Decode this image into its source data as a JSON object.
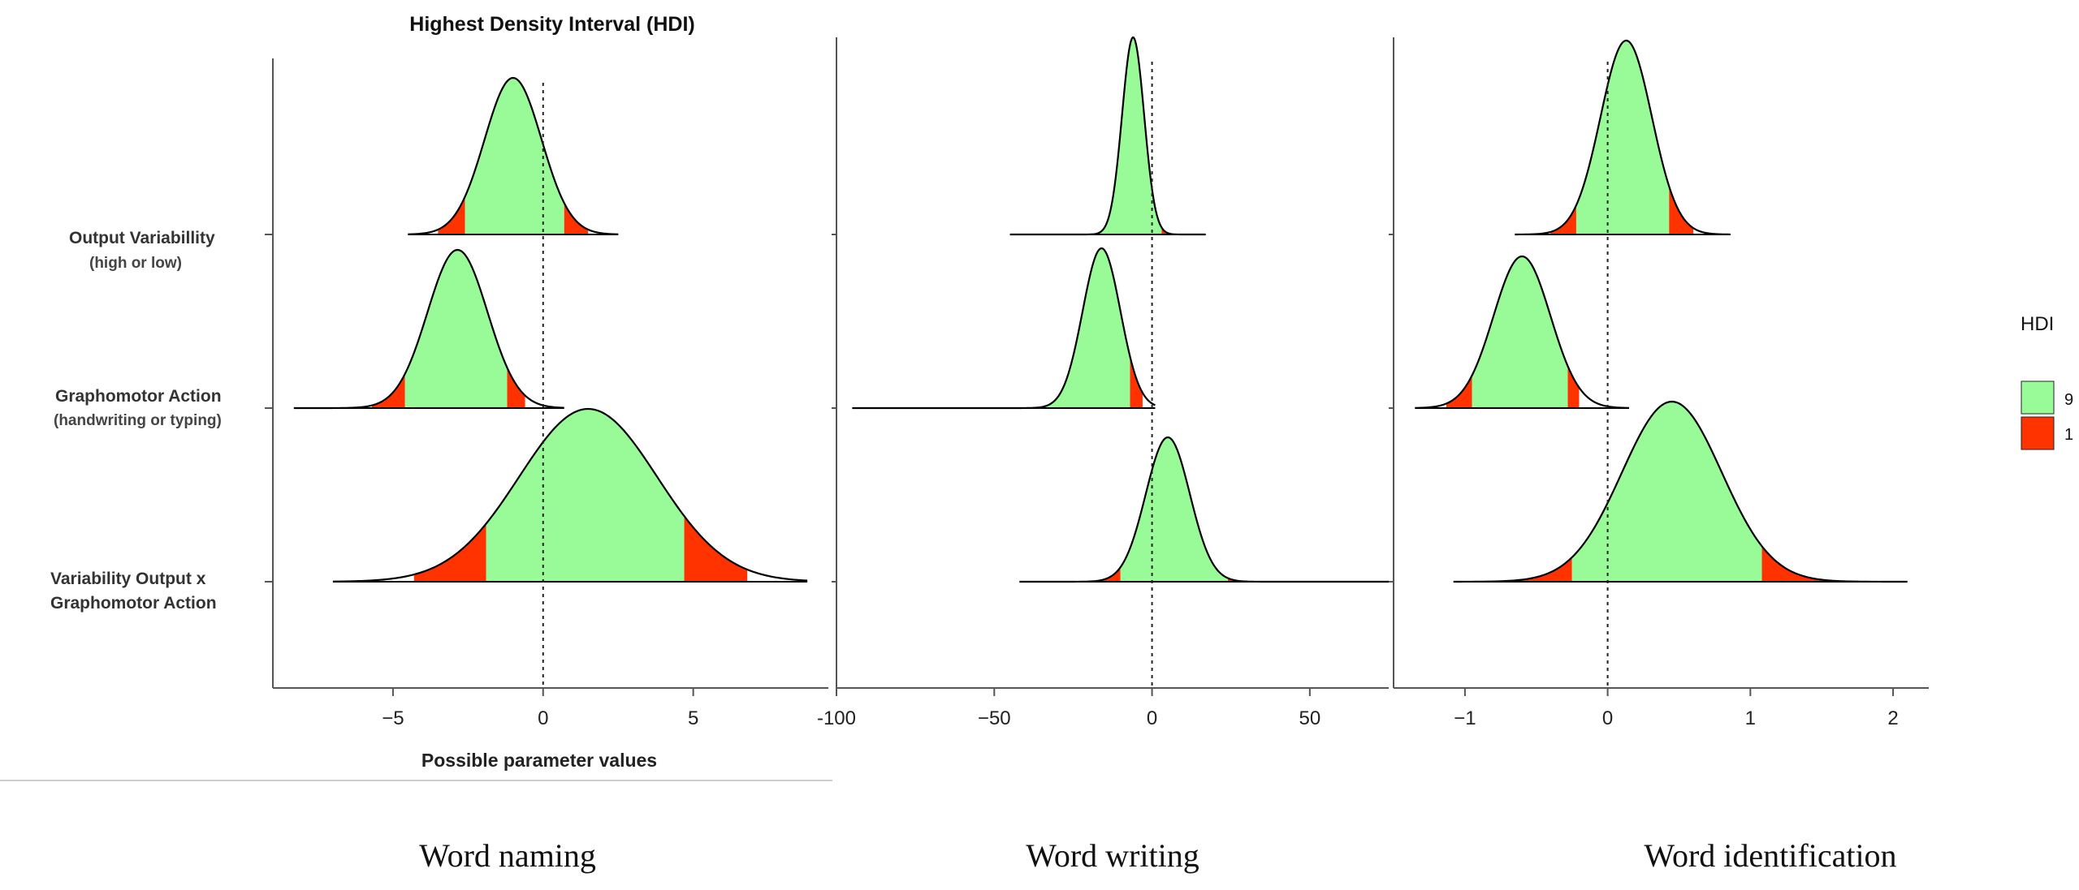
{
  "figure": {
    "title": "Highest Density Interval (HDI)",
    "xlabel": "Possible parameter values",
    "legend": {
      "title": "HDI",
      "entries": [
        {
          "label": "9",
          "color": "#98fb98"
        },
        {
          "label": "1",
          "color": "#ff3300"
        }
      ]
    },
    "colors": {
      "inner": "#98fb98",
      "tail": "#ff3300",
      "outline": "#000000",
      "axis": "#555555"
    }
  },
  "row_labels": [
    {
      "line1": "Output Variabillity",
      "line2": "(high or low)"
    },
    {
      "line1": "Graphomotor Action",
      "line2": "(handwriting or typing)"
    },
    {
      "line1": "Variability Output x",
      "line2": "Graphomotor Action"
    }
  ],
  "panel_titles": [
    "Word naming",
    "Word writing",
    "Word identification"
  ],
  "chart_data": [
    {
      "type": "area",
      "title": "Word naming",
      "xlabel": "Possible parameter values",
      "xlim": [
        -9,
        9.5
      ],
      "xticks": [
        -5,
        0,
        5
      ],
      "xtick_labels": [
        "−5",
        "0",
        "5"
      ],
      "reference_line": 0,
      "series": [
        {
          "name": "Output Variabillity (high or low)",
          "mode": -1.0,
          "sd": 0.95,
          "range": [
            -4.5,
            2.5
          ],
          "hdi_low": -2.6,
          "hdi_high": 0.7,
          "tail_low": -3.5,
          "tail_high": 1.5
        },
        {
          "name": "Graphomotor Action (handwriting or typing)",
          "mode": -2.85,
          "sd": 1.0,
          "range": [
            -8.3,
            0.7
          ],
          "hdi_low": -4.6,
          "hdi_high": -1.2,
          "tail_low": -5.7,
          "tail_high": -0.6
        },
        {
          "name": "Variability Output x Graphomotor Action",
          "mode": 1.5,
          "sd": 2.3,
          "range": [
            -7.0,
            8.8
          ],
          "hdi_low": -1.9,
          "hdi_high": 4.7,
          "tail_low": -4.3,
          "tail_high": 6.8
        }
      ]
    },
    {
      "type": "area",
      "title": "Word writing",
      "xlim": [
        -100,
        75
      ],
      "xticks": [
        -100,
        -50,
        0,
        50
      ],
      "xtick_labels": [
        "-100",
        "−50",
        "0",
        "50"
      ],
      "reference_line": 0,
      "series": [
        {
          "name": "Output Variabillity (high or low)",
          "mode": -6,
          "sd": 3.5,
          "range": [
            -45,
            17
          ],
          "hdi_low": -18,
          "hdi_high": 3,
          "tail_low": -28,
          "tail_high": 10
        },
        {
          "name": "Graphomotor Action (handwriting or typing)",
          "mode": -16,
          "sd": 6.0,
          "range": [
            -95,
            1
          ],
          "hdi_low": -35,
          "hdi_high": -7,
          "tail_low": -53,
          "tail_high": -3
        },
        {
          "name": "Variability Output x Graphomotor Action",
          "mode": 5,
          "sd": 7.0,
          "range": [
            -42,
            75
          ],
          "hdi_low": -10,
          "hdi_high": 24,
          "tail_low": -18,
          "tail_high": 43
        }
      ]
    },
    {
      "type": "area",
      "title": "Word identification",
      "xlim": [
        -1.5,
        2.25
      ],
      "xticks": [
        -1,
        0,
        1,
        2
      ],
      "xtick_labels": [
        "−1",
        "0",
        "1",
        "2"
      ],
      "reference_line": 0,
      "series": [
        {
          "name": "Output Variabillity (high or low)",
          "mode": 0.13,
          "sd": 0.18,
          "range": [
            -0.65,
            0.86
          ],
          "hdi_low": -0.22,
          "hdi_high": 0.43,
          "tail_low": -0.4,
          "tail_high": 0.6
        },
        {
          "name": "Graphomotor Action (handwriting or typing)",
          "mode": -0.6,
          "sd": 0.2,
          "range": [
            -1.35,
            0.15
          ],
          "hdi_low": -0.95,
          "hdi_high": -0.28,
          "tail_low": -1.13,
          "tail_high": -0.2
        },
        {
          "name": "Variability Output x Graphomotor Action",
          "mode": 0.45,
          "sd": 0.35,
          "range": [
            -1.08,
            2.1
          ],
          "hdi_low": -0.25,
          "hdi_high": 1.08,
          "tail_low": -0.66,
          "tail_high": 1.53
        }
      ]
    }
  ]
}
